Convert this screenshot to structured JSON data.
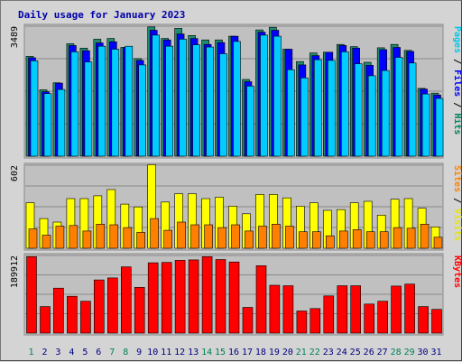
{
  "chart_data": {
    "type": "bar",
    "title": "Daily usage for January 2023",
    "categories": [
      "1",
      "2",
      "3",
      "4",
      "5",
      "6",
      "7",
      "8",
      "9",
      "10",
      "11",
      "12",
      "13",
      "14",
      "15",
      "16",
      "17",
      "18",
      "19",
      "20",
      "21",
      "22",
      "23",
      "24",
      "25",
      "26",
      "27",
      "28",
      "29",
      "30",
      "31"
    ],
    "weekend_days": [
      "1",
      "7",
      "8",
      "14",
      "15",
      "21",
      "22",
      "28",
      "29"
    ],
    "panels": [
      {
        "id": "hits-files-pages",
        "max_label": "3489",
        "ylim": [
          0,
          3489
        ],
        "right_label": [
          {
            "text": "Pages",
            "color": "#00c8e6"
          },
          {
            "text": " / ",
            "color": "#000000"
          },
          {
            "text": "Files",
            "color": "#0000ff"
          },
          {
            "text": " / ",
            "color": "#000000"
          },
          {
            "text": "Hits",
            "color": "#00805c"
          }
        ],
        "series": [
          {
            "name": "Hits",
            "color": "#1f8c6e",
            "values": [
              2680,
              1780,
              1970,
              3020,
              2900,
              3140,
              3160,
              2920,
              2620,
              3470,
              3160,
              3430,
              3240,
              3120,
              3120,
              3220,
              2060,
              3390,
              3460,
              2870,
              2540,
              2770,
              2790,
              3000,
              2940,
              2520,
              2910,
              3000,
              2840,
              1820,
              1690
            ]
          },
          {
            "name": "Files",
            "color": "#0000ff",
            "values": [
              2640,
              1730,
              1960,
              2970,
              2830,
              3040,
              3070,
              2920,
              2570,
              3380,
              3120,
              3280,
              3160,
              3000,
              3050,
              3220,
              2000,
              3330,
              3380,
              2870,
              2450,
              2700,
              2790,
              2970,
              2900,
              2440,
              2860,
              2920,
              2810,
              1800,
              1640
            ]
          },
          {
            "name": "Pages",
            "color": "#00ccff",
            "values": [
              2560,
              1680,
              1790,
              2800,
              2530,
              2950,
              2870,
              2950,
              2450,
              3250,
              2950,
              3140,
              2990,
              2930,
              2750,
              3080,
              1880,
              3250,
              3220,
              2320,
              2100,
              2590,
              2570,
              2800,
              2480,
              2160,
              2300,
              2650,
              2500,
              1670,
              1550
            ]
          }
        ]
      },
      {
        "id": "visits-sites",
        "max_label": "602",
        "ylim": [
          0,
          602
        ],
        "right_label": [
          {
            "text": "Sites",
            "color": "#ff8000"
          },
          {
            "text": " / ",
            "color": "#000000"
          },
          {
            "text": "Visits",
            "color": "#e6e600"
          }
        ],
        "series": [
          {
            "name": "Visits",
            "color": "#ffff00",
            "values": [
              330,
              215,
              190,
              360,
              360,
              380,
              425,
              320,
              300,
              605,
              335,
              395,
              395,
              360,
              370,
              305,
              250,
              390,
              390,
              365,
              305,
              330,
              275,
              280,
              330,
              340,
              240,
              355,
              360,
              290,
              155
            ]
          },
          {
            "name": "Sites",
            "color": "#ff8000",
            "values": [
              140,
              95,
              160,
              165,
              125,
              175,
              170,
              150,
              115,
              215,
              130,
              190,
              170,
              170,
              150,
              170,
              125,
              160,
              175,
              160,
              120,
              120,
              90,
              125,
              135,
              120,
              120,
              150,
              145,
              175,
              80
            ]
          }
        ]
      },
      {
        "id": "kbytes",
        "max_label": "189912",
        "ylim": [
          0,
          189912
        ],
        "right_label": [
          {
            "text": "KBytes",
            "color": "#ff0000"
          }
        ],
        "series": [
          {
            "name": "KBytes",
            "color": "#ff0000",
            "values": [
              187000,
              65000,
              110000,
              90000,
              78000,
              130000,
              135000,
              162000,
              112000,
              172000,
              173000,
              178000,
              179000,
              187000,
              180000,
              174000,
              63000,
              165000,
              117000,
              116000,
              54000,
              60000,
              91000,
              116000,
              116000,
              71000,
              78000,
              115000,
              120000,
              65000,
              58000
            ]
          }
        ]
      }
    ]
  }
}
